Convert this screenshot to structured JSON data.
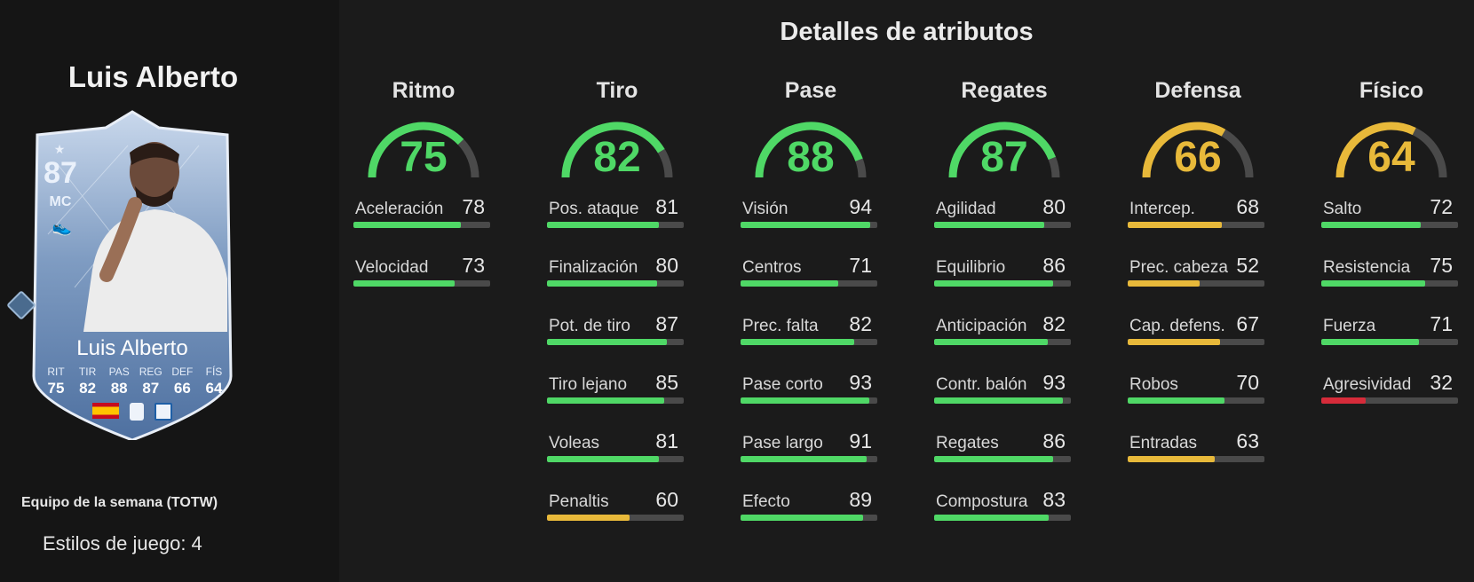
{
  "player": {
    "name": "Luis Alberto",
    "rating": "87",
    "position": "MC",
    "card_name": "Luis Alberto",
    "card_stats": [
      {
        "label": "RIT",
        "value": "75"
      },
      {
        "label": "TIR",
        "value": "82"
      },
      {
        "label": "PAS",
        "value": "88"
      },
      {
        "label": "REG",
        "value": "87"
      },
      {
        "label": "DEF",
        "value": "66"
      },
      {
        "label": "FÍS",
        "value": "64"
      }
    ],
    "program": "Equipo de la semana (TOTW)",
    "playstyles": "Estilos de juego: 4"
  },
  "title": "Detalles de atributos",
  "colors": {
    "green": "#4fd866",
    "yellow": "#e8b93a",
    "red": "#d62b3a",
    "track": "#4a4a4a"
  },
  "categories": [
    {
      "name": "Ritmo",
      "value": 75,
      "attributes": [
        {
          "name": "Aceleración",
          "value": 78
        },
        {
          "name": "Velocidad",
          "value": 73
        }
      ]
    },
    {
      "name": "Tiro",
      "value": 82,
      "attributes": [
        {
          "name": "Pos. ataque",
          "value": 81
        },
        {
          "name": "Finalización",
          "value": 80
        },
        {
          "name": "Pot. de tiro",
          "value": 87
        },
        {
          "name": "Tiro lejano",
          "value": 85
        },
        {
          "name": "Voleas",
          "value": 81
        },
        {
          "name": "Penaltis",
          "value": 60
        }
      ]
    },
    {
      "name": "Pase",
      "value": 88,
      "attributes": [
        {
          "name": "Visión",
          "value": 94
        },
        {
          "name": "Centros",
          "value": 71
        },
        {
          "name": "Prec. falta",
          "value": 82
        },
        {
          "name": "Pase corto",
          "value": 93
        },
        {
          "name": "Pase largo",
          "value": 91
        },
        {
          "name": "Efecto",
          "value": 89
        }
      ]
    },
    {
      "name": "Regates",
      "value": 87,
      "attributes": [
        {
          "name": "Agilidad",
          "value": 80
        },
        {
          "name": "Equilibrio",
          "value": 86
        },
        {
          "name": "Anticipación",
          "value": 82
        },
        {
          "name": "Contr. balón",
          "value": 93
        },
        {
          "name": "Regates",
          "value": 86
        },
        {
          "name": "Compostura",
          "value": 83
        }
      ]
    },
    {
      "name": "Defensa",
      "value": 66,
      "attributes": [
        {
          "name": "Intercep.",
          "value": 68
        },
        {
          "name": "Prec. cabeza",
          "value": 52
        },
        {
          "name": "Cap. defens.",
          "value": 67
        },
        {
          "name": "Robos",
          "value": 70
        },
        {
          "name": "Entradas",
          "value": 63
        }
      ]
    },
    {
      "name": "Físico",
      "value": 64,
      "attributes": [
        {
          "name": "Salto",
          "value": 72
        },
        {
          "name": "Resistencia",
          "value": 75
        },
        {
          "name": "Fuerza",
          "value": 71
        },
        {
          "name": "Agresividad",
          "value": 32
        }
      ]
    }
  ]
}
